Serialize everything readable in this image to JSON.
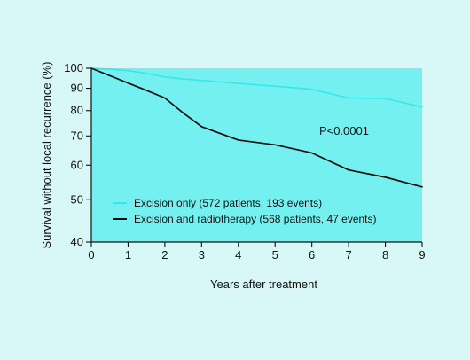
{
  "chart_data": {
    "type": "line",
    "title": "",
    "xlabel": "Years after treatment",
    "ylabel": "Survival without local recurrence (%)",
    "x": [
      0,
      1,
      2,
      3,
      4,
      5,
      6,
      7,
      8,
      9
    ],
    "xlim": [
      0,
      9
    ],
    "ylim": [
      40,
      100
    ],
    "y_scale": "log",
    "x_ticks": [
      "0",
      "1",
      "2",
      "3",
      "4",
      "5",
      "6",
      "7",
      "8",
      "9"
    ],
    "y_ticks": [
      {
        "value": 40,
        "label": "40"
      },
      {
        "value": 50,
        "label": "50"
      },
      {
        "value": 60,
        "label": "60"
      },
      {
        "value": 70,
        "label": "70"
      },
      {
        "value": 80,
        "label": "80"
      },
      {
        "value": 90,
        "label": "90"
      },
      {
        "value": 100,
        "label": "100"
      }
    ],
    "series": [
      {
        "name": "Excision only (572 patients, 193 events)",
        "color": "#33e8e8",
        "x": [
          0,
          0.5,
          1,
          1.5,
          2,
          2.5,
          3,
          4,
          5,
          6,
          7,
          8,
          9
        ],
        "values": [
          100,
          99.5,
          98.8,
          97.3,
          95.5,
          94.5,
          93.8,
          92.3,
          91.0,
          89.5,
          85.5,
          85.3,
          81.5
        ]
      },
      {
        "name": "Excision and radiotherapy (568 patients, 47 events)",
        "color": "#111111",
        "x": [
          0,
          0.5,
          1,
          1.5,
          2,
          2.5,
          3,
          4,
          5,
          6,
          7,
          8,
          9
        ],
        "values": [
          100,
          96.2,
          92.5,
          89.0,
          85.5,
          79.0,
          73.5,
          68.5,
          66.8,
          64.0,
          58.5,
          56.3,
          53.5
        ]
      }
    ],
    "annotations": [
      {
        "text": "P<0.0001",
        "x": 6.2,
        "y": 68.5
      }
    ],
    "legend": {
      "position": "bottom-left"
    },
    "colors": {
      "page_background": "#d8f8f8",
      "plot_background": "#75f0f0",
      "axis": "#111111"
    }
  }
}
